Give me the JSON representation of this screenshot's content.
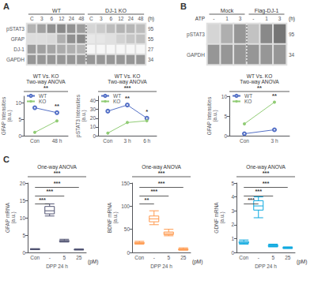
{
  "chart_data": [
    {
      "type": "heatmap",
      "panel": "A",
      "groups": [
        {
          "name": "WT",
          "columns": [
            "C",
            "3",
            "6",
            "12",
            "24",
            "48"
          ]
        },
        {
          "name": "DJ-1 KO",
          "columns": [
            "C",
            "3",
            "6",
            "12",
            "24",
            "48"
          ]
        }
      ],
      "header_right": "(h)",
      "rows": [
        "pSTAT3",
        "GFAP",
        "DJ-1",
        "GAPDH"
      ],
      "kDa": [
        95,
        55,
        27,
        34
      ],
      "cells": [
        [
          0.4,
          0.5,
          0.58,
          0.62,
          0.57,
          0.52,
          0.22,
          0.28,
          0.35,
          0.4,
          0.38,
          0.35
        ],
        [
          0.18,
          0.18,
          0.2,
          0.42,
          0.58,
          0.62,
          0.12,
          0.13,
          0.16,
          0.24,
          0.3,
          0.33
        ],
        [
          0.52,
          0.5,
          0.47,
          0.44,
          0.42,
          0.4,
          0.04,
          0.04,
          0.04,
          0.04,
          0.04,
          0.04
        ],
        [
          0.55,
          0.55,
          0.55,
          0.55,
          0.55,
          0.55,
          0.55,
          0.55,
          0.55,
          0.55,
          0.55,
          0.55
        ]
      ],
      "zlim": [
        0,
        1
      ]
    },
    {
      "type": "line",
      "title": "WT Vs. KO",
      "subtitle": "Two-way ANOVA",
      "sig_label": "**",
      "categories": [
        "Con",
        "48 h"
      ],
      "series": [
        {
          "name": "WT",
          "values": [
            8.5,
            7.0
          ],
          "color": "#5470c6",
          "marker": "open circle"
        },
        {
          "name": "KO",
          "values": [
            1.0,
            4.5
          ],
          "color": "#91cc75",
          "marker": "circle"
        }
      ],
      "ylabel": "GFAP Intensities\n(a.u.)",
      "ylim": [
        0,
        12
      ],
      "yticks": [
        0,
        5,
        10
      ],
      "legend": "upper left",
      "grid": false,
      "annotations": [
        {
          "text": "**",
          "category": "48 h"
        }
      ]
    },
    {
      "type": "line",
      "title": "WT Vs. KO",
      "subtitle": "Two-way ANOVA",
      "sig_label": "***",
      "categories": [
        "Con",
        "3 h",
        "6 h"
      ],
      "series": [
        {
          "name": "WT",
          "values": [
            28.0,
            35.0,
            20.0
          ],
          "color": "#5470c6",
          "marker": "open circle"
        },
        {
          "name": "KO",
          "values": [
            3.0,
            15.0,
            17.0
          ],
          "color": "#91cc75",
          "marker": "circle"
        }
      ],
      "ylabel": "pSTAT3 Intensities\n(a.u.)",
      "ylim": [
        0,
        45
      ],
      "yticks": [
        0,
        10,
        20,
        30,
        40
      ],
      "legend": "upper left",
      "grid": false,
      "annotations": [
        {
          "text": "**",
          "category": "3 h"
        },
        {
          "text": "*",
          "category": "6 h"
        }
      ]
    },
    {
      "type": "heatmap",
      "panel": "B",
      "groups": [
        {
          "name": "Mock",
          "columns": [
            "-",
            "1",
            "3"
          ]
        },
        {
          "name": "Flag-DJ-1",
          "columns": [
            "-",
            "1",
            "3"
          ]
        }
      ],
      "header_left": "ATP",
      "header_right": "(h)",
      "rows": [
        "pSTAT3",
        "GAPDH"
      ],
      "kDa": [
        95,
        34
      ],
      "cells": [
        [
          0.22,
          0.42,
          0.55,
          0.32,
          0.62,
          0.72
        ],
        [
          0.55,
          0.55,
          0.55,
          0.55,
          0.55,
          0.55
        ]
      ],
      "zlim": [
        0,
        1
      ]
    },
    {
      "type": "line",
      "title": "WT Vs. KO",
      "subtitle": "Two-way ANOVA",
      "sig_label": "**",
      "categories": [
        "Con",
        "3 h"
      ],
      "series": [
        {
          "name": "WT",
          "values": [
            0.5,
            1.5
          ],
          "color": "#5470c6",
          "marker": "open circle"
        },
        {
          "name": "KO",
          "values": [
            3.0,
            8.5
          ],
          "color": "#91cc75",
          "marker": "circle"
        }
      ],
      "ylabel": "GFAP Intensities\n(a.u.)",
      "ylim": [
        0,
        10
      ],
      "yticks": [
        0,
        5,
        10
      ],
      "legend": "upper left",
      "grid": false,
      "annotations": [
        {
          "text": "**",
          "category": "3 h"
        }
      ]
    },
    {
      "type": "boxplot",
      "panel": "C",
      "title": "One-way ANOVA",
      "sig_label": "***",
      "categories": [
        "Con",
        "-",
        "5",
        "25"
      ],
      "boxes": [
        {
          "whisker_low": 0.8,
          "q1": 0.8625,
          "median": 0.95,
          "q3": 1.0,
          "whisker_high": 1.1
        },
        {
          "whisker_low": 10.5,
          "q1": 11.125,
          "median": 12.0,
          "q3": 13.25,
          "whisker_high": 14.0
        },
        {
          "whisker_low": 3.0,
          "q1": 3.125,
          "median": 3.25,
          "q3": 3.45,
          "whisker_high": 3.8
        },
        {
          "whisker_low": 0.7,
          "q1": 0.7625,
          "median": 0.825,
          "q3": 0.8875,
          "whisker_high": 1.0
        }
      ],
      "ylabel": "GFAP mRNA\n(a.u.)",
      "xlabel": "DPP 24 h",
      "x_unit": "(pM)",
      "ylim": [
        0,
        20
      ],
      "yticks": [
        0,
        5,
        10,
        15,
        20
      ],
      "grid": false,
      "comparisons": [
        {
          "from": "Con",
          "to": "25",
          "label": "***"
        },
        {
          "from": "Con",
          "to": "5",
          "label": "***"
        },
        {
          "from": "Con",
          "to": "-",
          "label": "***"
        }
      ]
    },
    {
      "type": "boxplot",
      "title": "One-way ANOVA",
      "sig_label": "***",
      "categories": [
        "Con",
        "-",
        "5",
        "25"
      ],
      "boxes": [
        {
          "whisker_low": 18,
          "q1": 19.25,
          "median": 20.5,
          "q3": 21.75,
          "whisker_high": 24
        },
        {
          "whisker_low": 60,
          "q1": 66.25,
          "median": 72.5,
          "q3": 78.75,
          "whisker_high": 90
        },
        {
          "whisker_low": 36,
          "q1": 38.5,
          "median": 41,
          "q3": 44.25,
          "whisker_high": 50
        },
        {
          "whisker_low": 5,
          "q1": 5.25,
          "median": 6.5,
          "q3": 7.75,
          "whisker_high": 10
        }
      ],
      "ylabel": "BDNF mRNA\n(a.u.)",
      "xlabel": "DPP 24 h",
      "x_unit": "(pM)",
      "ylim": [
        0,
        150
      ],
      "yticks": [
        0,
        50,
        100,
        150
      ],
      "grid": false,
      "comparisons": [
        {
          "from": "Con",
          "to": "25",
          "label": "***"
        },
        {
          "from": "Con",
          "to": "5",
          "label": "***"
        },
        {
          "from": "Con",
          "to": "-",
          "label": "**"
        }
      ]
    },
    {
      "type": "boxplot",
      "title": "One-way ANOVA",
      "sig_label": "***",
      "categories": [
        "Con",
        "-",
        "5",
        "25"
      ],
      "boxes": [
        {
          "whisker_low": 0.6,
          "q1": 0.6625,
          "median": 0.725,
          "q3": 0.7875,
          "whisker_high": 0.9
        },
        {
          "whisker_low": 2.5,
          "q1": 3.05,
          "median": 3.35,
          "q3": 3.725,
          "whisker_high": 4.0
        },
        {
          "whisker_low": 0.4,
          "q1": 0.4275,
          "median": 0.475,
          "q3": 0.5375,
          "whisker_high": 0.6
        },
        {
          "whisker_low": 0.28,
          "q1": 0.305,
          "median": 0.335,
          "q3": 0.3725,
          "whisker_high": 0.4
        }
      ],
      "ylabel": "GDNF mRNA\n(a.u.)",
      "xlabel": "DPP 24 h",
      "x_unit": "(pM)",
      "ylim": [
        0,
        5
      ],
      "yticks": [
        0,
        1,
        2,
        3,
        4,
        5
      ],
      "grid": false,
      "comparisons": [
        {
          "from": "Con",
          "to": "25",
          "label": "***"
        },
        {
          "from": "Con",
          "to": "5",
          "label": "***"
        },
        {
          "from": "Con",
          "to": "-",
          "label": "***"
        }
      ]
    }
  ]
}
